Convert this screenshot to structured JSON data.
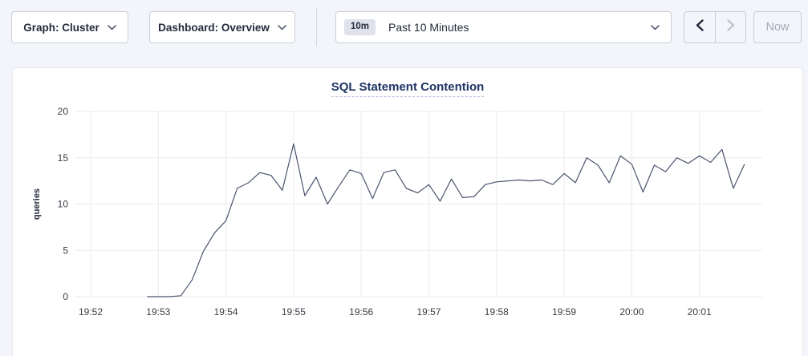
{
  "toolbar": {
    "graph_dropdown_label": "Graph: Cluster",
    "dashboard_dropdown_label": "Dashboard: Overview",
    "time_window": {
      "badge": "10m",
      "label": "Past 10 Minutes"
    },
    "now_button_label": "Now"
  },
  "icons": {
    "chevron_down": "⌄",
    "chevron_left": "‹",
    "chevron_right": "›"
  },
  "chart_data": {
    "type": "line",
    "title": "SQL Statement Contention",
    "xlabel": "",
    "ylabel": "queries",
    "ylim": [
      0,
      20
    ],
    "yticks": [
      0,
      5,
      10,
      15,
      20
    ],
    "x_tick_labels": [
      "19:52",
      "19:53",
      "19:54",
      "19:55",
      "19:56",
      "19:57",
      "19:58",
      "19:59",
      "20:00",
      "20:01"
    ],
    "grid": true,
    "legend": "none",
    "colors": {
      "line": "#4a546e",
      "grid": "#ebebee",
      "accent_title": "#1e3364"
    },
    "series": [
      {
        "name": "queries",
        "x_seconds_after_19_52": [
          50,
          60,
          70,
          80,
          90,
          100,
          110,
          120,
          130,
          140,
          150,
          160,
          170,
          180,
          190,
          200,
          210,
          220,
          230,
          240,
          250,
          260,
          270,
          280,
          290,
          300,
          310,
          320,
          330,
          340,
          350,
          360,
          370,
          380,
          390,
          400,
          410,
          420,
          430,
          440,
          450,
          460,
          470,
          480,
          490,
          500,
          510,
          520,
          530,
          540,
          550,
          560,
          570,
          580
        ],
        "values": [
          0,
          0,
          0,
          0.1,
          1.8,
          4.9,
          6.9,
          8.2,
          11.7,
          12.3,
          13.4,
          13.1,
          11.5,
          16.5,
          10.9,
          12.9,
          10.0,
          11.9,
          13.7,
          13.3,
          10.6,
          13.4,
          13.7,
          11.7,
          11.2,
          12.1,
          10.3,
          12.7,
          10.7,
          10.8,
          12.1,
          12.4,
          12.5,
          12.6,
          12.5,
          12.6,
          12.1,
          13.3,
          12.3,
          15.0,
          14.2,
          12.3,
          15.2,
          14.3,
          11.3,
          14.2,
          13.5,
          15.0,
          14.4,
          15.2,
          14.5,
          15.9,
          11.7,
          14.3
        ]
      }
    ]
  }
}
